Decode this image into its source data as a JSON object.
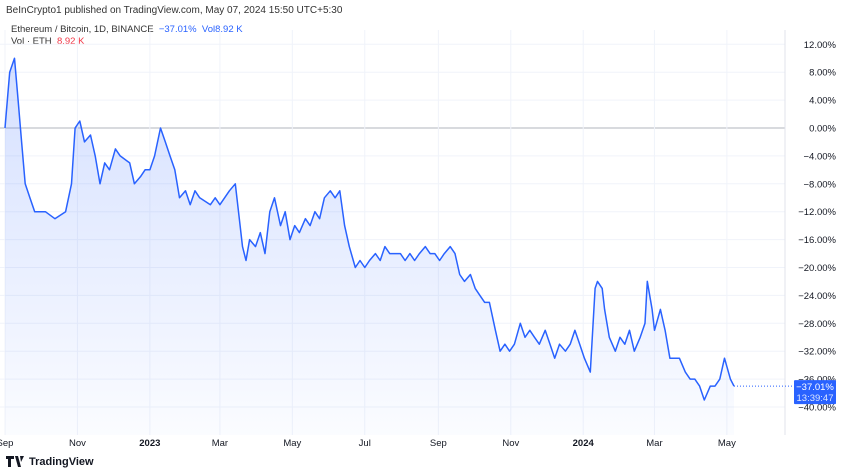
{
  "header": {
    "published": "BeInCrypto1 published on TradingView.com, May 07, 2024 15:50 UTC+5:30"
  },
  "legend": {
    "symbol": "Ethereum / Bitcoin, 1D, BINANCE",
    "change": "−37.01%",
    "vol_label": "Vol",
    "vol_value": "8.92 K",
    "vol_series": "Vol · ETH",
    "vol_series_value": "8.92 K"
  },
  "footer": {
    "logo": "TradingView"
  },
  "price_tag": {
    "value": "−37.01%",
    "countdown": "13:39:47"
  },
  "colors": {
    "line": "#2962ff",
    "fill": "#2962ff",
    "vol_up": "#26a69a",
    "vol_down": "#ef5350"
  },
  "chart_data": {
    "type": "area",
    "title": "Ethereum / Bitcoin, 1D, BINANCE",
    "ylim": [
      -42,
      14
    ],
    "grid": true,
    "y_ticks": [
      "12.00%",
      "8.00%",
      "4.00%",
      "0.00%",
      "−4.00%",
      "−8.00%",
      "−12.00%",
      "−16.00%",
      "−20.00%",
      "−24.00%",
      "−28.00%",
      "−32.00%",
      "−36.00%",
      "−40.00%"
    ],
    "y_tick_values": [
      12,
      8,
      4,
      0,
      -4,
      -8,
      -12,
      -16,
      -20,
      -24,
      -28,
      -32,
      -36,
      -40
    ],
    "x_ticks": [
      {
        "label": "Sep",
        "date": "2022-09-01"
      },
      {
        "label": "Nov",
        "date": "2022-11-01"
      },
      {
        "label": "2023",
        "date": "2023-01-01"
      },
      {
        "label": "Mar",
        "date": "2023-03-01"
      },
      {
        "label": "May",
        "date": "2023-05-01"
      },
      {
        "label": "Jul",
        "date": "2023-07-01"
      },
      {
        "label": "Sep",
        "date": "2023-09-01"
      },
      {
        "label": "Nov",
        "date": "2023-11-01"
      },
      {
        "label": "2024",
        "date": "2024-01-01"
      },
      {
        "label": "Mar",
        "date": "2024-03-01"
      },
      {
        "label": "May",
        "date": "2024-05-01"
      }
    ],
    "series": [
      {
        "points": [
          [
            "2022-09-01",
            0
          ],
          [
            "2022-09-05",
            8
          ],
          [
            "2022-09-09",
            10
          ],
          [
            "2022-09-12",
            4
          ],
          [
            "2022-09-15",
            -2
          ],
          [
            "2022-09-18",
            -8
          ],
          [
            "2022-09-22",
            -10
          ],
          [
            "2022-09-26",
            -12
          ],
          [
            "2022-10-05",
            -12
          ],
          [
            "2022-10-13",
            -13
          ],
          [
            "2022-10-22",
            -12
          ],
          [
            "2022-10-27",
            -8
          ],
          [
            "2022-10-30",
            0
          ],
          [
            "2022-11-03",
            1
          ],
          [
            "2022-11-07",
            -2
          ],
          [
            "2022-11-12",
            -1
          ],
          [
            "2022-11-16",
            -4
          ],
          [
            "2022-11-20",
            -8
          ],
          [
            "2022-11-24",
            -5
          ],
          [
            "2022-11-28",
            -6
          ],
          [
            "2022-12-03",
            -3
          ],
          [
            "2022-12-07",
            -4
          ],
          [
            "2022-12-15",
            -5
          ],
          [
            "2022-12-19",
            -8
          ],
          [
            "2022-12-24",
            -7
          ],
          [
            "2022-12-28",
            -6
          ],
          [
            "2023-01-01",
            -6
          ],
          [
            "2023-01-05",
            -4
          ],
          [
            "2023-01-10",
            0
          ],
          [
            "2023-01-14",
            -2
          ],
          [
            "2023-01-18",
            -4
          ],
          [
            "2023-01-22",
            -6
          ],
          [
            "2023-01-26",
            -10
          ],
          [
            "2023-01-31",
            -9
          ],
          [
            "2023-02-04",
            -11
          ],
          [
            "2023-02-08",
            -9
          ],
          [
            "2023-02-12",
            -10
          ],
          [
            "2023-02-21",
            -11
          ],
          [
            "2023-02-25",
            -10
          ],
          [
            "2023-03-01",
            -11
          ],
          [
            "2023-03-09",
            -9
          ],
          [
            "2023-03-14",
            -8
          ],
          [
            "2023-03-18",
            -14
          ],
          [
            "2023-03-20",
            -17
          ],
          [
            "2023-03-23",
            -19
          ],
          [
            "2023-03-26",
            -16
          ],
          [
            "2023-03-31",
            -17
          ],
          [
            "2023-04-04",
            -15
          ],
          [
            "2023-04-08",
            -18
          ],
          [
            "2023-04-12",
            -12
          ],
          [
            "2023-04-16",
            -10
          ],
          [
            "2023-04-21",
            -14
          ],
          [
            "2023-04-25",
            -12
          ],
          [
            "2023-04-29",
            -16
          ],
          [
            "2023-05-03",
            -14
          ],
          [
            "2023-05-07",
            -15
          ],
          [
            "2023-05-12",
            -13
          ],
          [
            "2023-05-16",
            -14
          ],
          [
            "2023-05-20",
            -12
          ],
          [
            "2023-05-24",
            -13
          ],
          [
            "2023-05-28",
            -10
          ],
          [
            "2023-06-02",
            -9
          ],
          [
            "2023-06-06",
            -10
          ],
          [
            "2023-06-10",
            -9
          ],
          [
            "2023-06-14",
            -14
          ],
          [
            "2023-06-18",
            -17
          ],
          [
            "2023-06-23",
            -20
          ],
          [
            "2023-06-27",
            -19
          ],
          [
            "2023-07-01",
            -20
          ],
          [
            "2023-07-05",
            -19
          ],
          [
            "2023-07-10",
            -18
          ],
          [
            "2023-07-14",
            -19
          ],
          [
            "2023-07-18",
            -17
          ],
          [
            "2023-07-22",
            -18
          ],
          [
            "2023-07-26",
            -18
          ],
          [
            "2023-07-31",
            -18
          ],
          [
            "2023-08-04",
            -19
          ],
          [
            "2023-08-08",
            -18
          ],
          [
            "2023-08-12",
            -19
          ],
          [
            "2023-08-16",
            -18
          ],
          [
            "2023-08-21",
            -17
          ],
          [
            "2023-08-25",
            -18
          ],
          [
            "2023-08-29",
            -18
          ],
          [
            "2023-09-02",
            -19
          ],
          [
            "2023-09-06",
            -18
          ],
          [
            "2023-09-11",
            -17
          ],
          [
            "2023-09-15",
            -18
          ],
          [
            "2023-09-19",
            -21
          ],
          [
            "2023-09-23",
            -22
          ],
          [
            "2023-09-28",
            -21
          ],
          [
            "2023-10-02",
            -23
          ],
          [
            "2023-10-06",
            -24
          ],
          [
            "2023-10-10",
            -25
          ],
          [
            "2023-10-14",
            -25
          ],
          [
            "2023-10-19",
            -29
          ],
          [
            "2023-10-23",
            -32
          ],
          [
            "2023-10-27",
            -31
          ],
          [
            "2023-10-31",
            -32
          ],
          [
            "2023-11-04",
            -31
          ],
          [
            "2023-11-09",
            -28
          ],
          [
            "2023-11-13",
            -30
          ],
          [
            "2023-11-17",
            -29
          ],
          [
            "2023-11-21",
            -30
          ],
          [
            "2023-11-25",
            -31
          ],
          [
            "2023-11-30",
            -29
          ],
          [
            "2023-12-04",
            -31
          ],
          [
            "2023-12-08",
            -33
          ],
          [
            "2023-12-12",
            -31
          ],
          [
            "2023-12-17",
            -32
          ],
          [
            "2023-12-21",
            -31
          ],
          [
            "2023-12-25",
            -29
          ],
          [
            "2023-12-29",
            -31
          ],
          [
            "2024-01-02",
            -33
          ],
          [
            "2024-01-07",
            -35
          ],
          [
            "2024-01-11",
            -23
          ],
          [
            "2024-01-13",
            -22
          ],
          [
            "2024-01-17",
            -23
          ],
          [
            "2024-01-19",
            -26
          ],
          [
            "2024-01-23",
            -30
          ],
          [
            "2024-01-28",
            -32
          ],
          [
            "2024-02-01",
            -30
          ],
          [
            "2024-02-05",
            -31
          ],
          [
            "2024-02-09",
            -29
          ],
          [
            "2024-02-13",
            -32
          ],
          [
            "2024-02-18",
            -30
          ],
          [
            "2024-02-22",
            -28
          ],
          [
            "2024-02-24",
            -22
          ],
          [
            "2024-02-28",
            -26
          ],
          [
            "2024-03-01",
            -29
          ],
          [
            "2024-03-06",
            -26
          ],
          [
            "2024-03-10",
            -29
          ],
          [
            "2024-03-14",
            -33
          ],
          [
            "2024-03-18",
            -33
          ],
          [
            "2024-03-22",
            -33
          ],
          [
            "2024-03-27",
            -35
          ],
          [
            "2024-03-31",
            -36
          ],
          [
            "2024-04-04",
            -36
          ],
          [
            "2024-04-08",
            -37
          ],
          [
            "2024-04-12",
            -39
          ],
          [
            "2024-04-17",
            -37
          ],
          [
            "2024-04-21",
            -37
          ],
          [
            "2024-04-25",
            -36
          ],
          [
            "2024-04-29",
            -33
          ],
          [
            "2024-05-04",
            -36
          ],
          [
            "2024-05-07",
            -37.01
          ]
        ]
      }
    ]
  }
}
